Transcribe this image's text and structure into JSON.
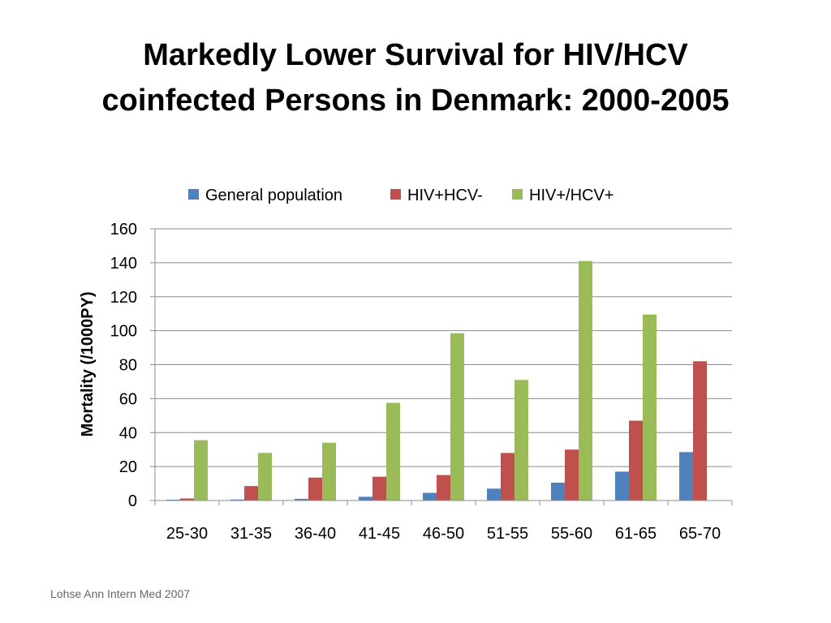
{
  "slide": {
    "title_line1": "Markedly Lower Survival for HIV/HCV",
    "title_line2": "coinfected Persons in Denmark: 2000-2005",
    "citation": "Lohse Ann Intern Med 2007"
  },
  "chart_data": {
    "type": "bar",
    "title": "",
    "xlabel": "",
    "ylabel": "Mortality (/1000PY)",
    "ylim": [
      0,
      160
    ],
    "yticks": [
      0,
      20,
      40,
      60,
      80,
      100,
      120,
      140,
      160
    ],
    "grid": true,
    "legend_position": "top",
    "categories": [
      "25-30",
      "31-35",
      "36-40",
      "41-45",
      "46-50",
      "51-55",
      "55-60",
      "61-65",
      "65-70"
    ],
    "series": [
      {
        "name": "General population",
        "color": "#4F81BD",
        "values": [
          0.5,
          0.6,
          1.0,
          2.2,
          4.5,
          7.0,
          10.5,
          17.0,
          28.5
        ]
      },
      {
        "name": "HIV+HCV-",
        "color": "#C0504D",
        "values": [
          1.2,
          8.5,
          13.5,
          14.0,
          15.0,
          28.0,
          30.0,
          47.0,
          82.0
        ]
      },
      {
        "name": "HIV+/HCV+",
        "color": "#9BBB59",
        "values": [
          35.5,
          28.0,
          34.0,
          57.5,
          98.5,
          71.0,
          141.0,
          109.5,
          null
        ]
      }
    ]
  }
}
